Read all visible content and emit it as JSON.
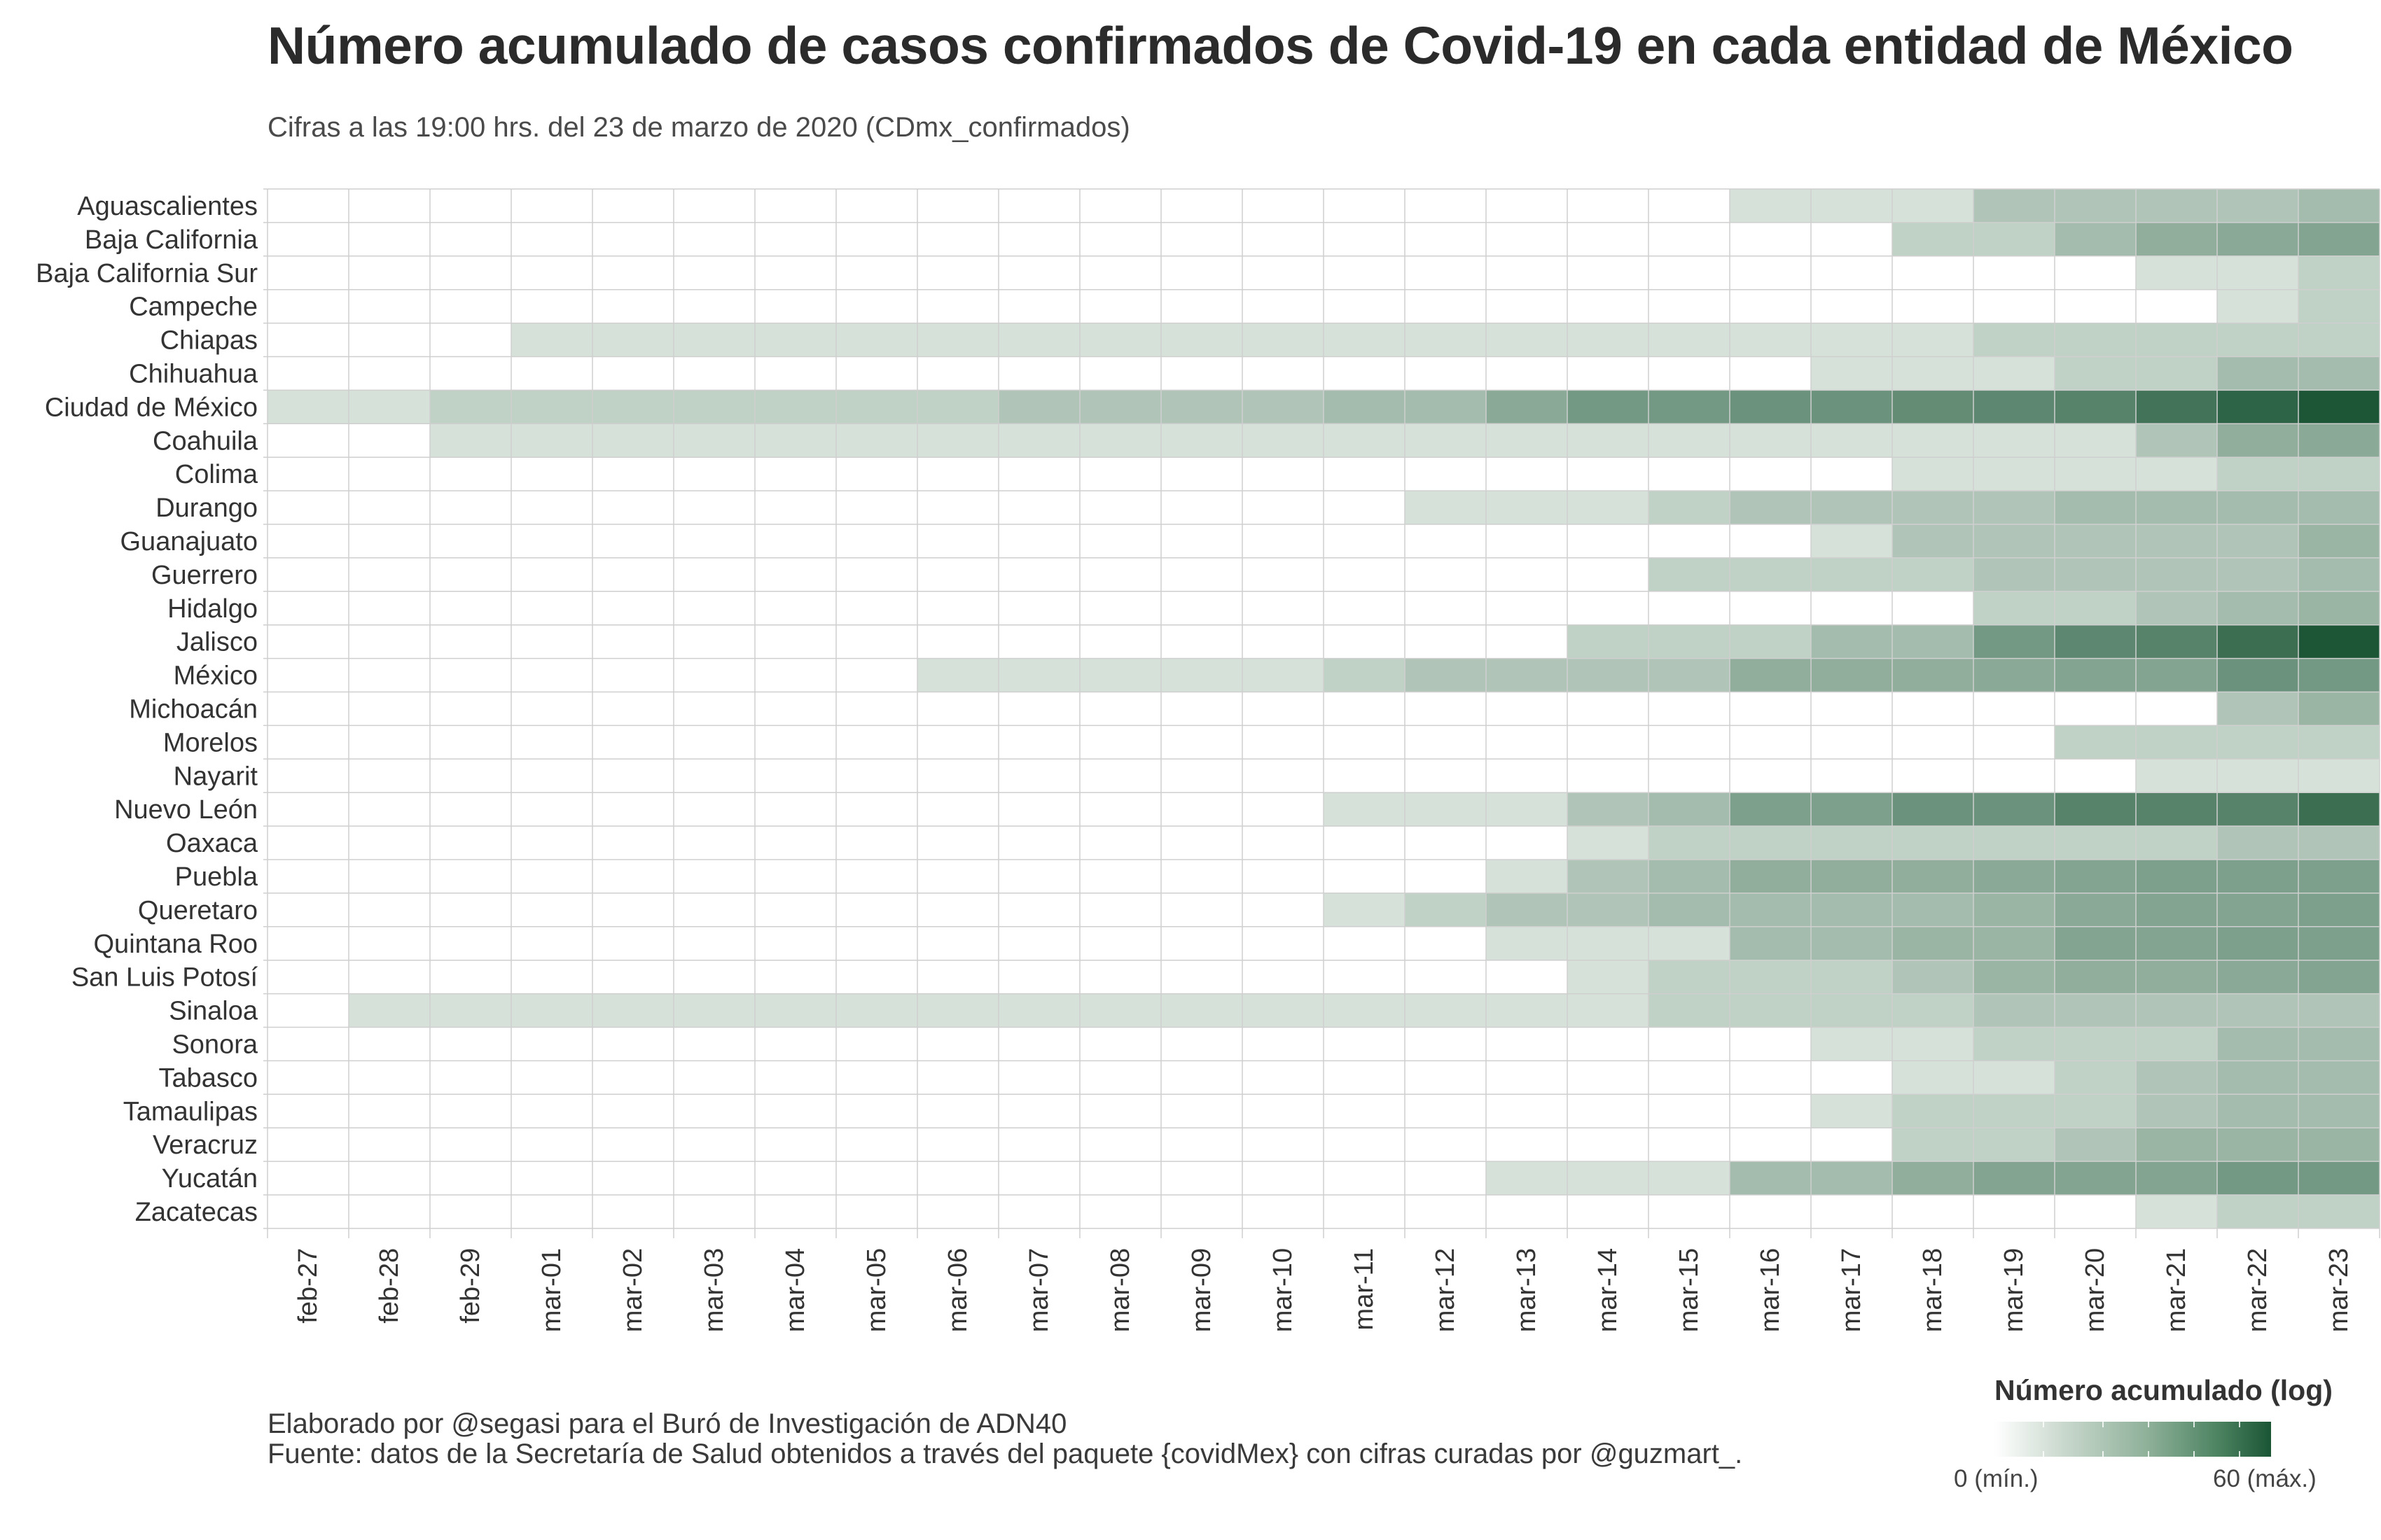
{
  "title": "Número acumulado de casos confirmados de Covid-19 en cada entidad de México",
  "subtitle": "Cifras a las 19:00 hrs. del 23 de marzo de 2020 (CDmx_confirmados)",
  "caption_line1": "Elaborado por @segasi  para el Buró de Investigación de ADN40",
  "caption_line2": "Fuente: datos de la Secretaría de Salud obtenidos a través del paquete {covidMex} con cifras curadas por @guzmart_.",
  "legend": {
    "title": "Número acumulado (log)",
    "min_label": "0 (mín.)",
    "max_label": "60 (máx.)"
  },
  "colors": {
    "low": "#d6e2d9",
    "high": "#1a5535",
    "grid": "#cfcfcf",
    "empty": "#ffffff"
  },
  "chart_data": {
    "type": "heatmap",
    "scale": "log",
    "value_range": [
      0,
      60
    ],
    "x": [
      "feb-27",
      "feb-28",
      "feb-29",
      "mar-01",
      "mar-02",
      "mar-03",
      "mar-04",
      "mar-05",
      "mar-06",
      "mar-07",
      "mar-08",
      "mar-09",
      "mar-10",
      "mar-11",
      "mar-12",
      "mar-13",
      "mar-14",
      "mar-15",
      "mar-16",
      "mar-17",
      "mar-18",
      "mar-19",
      "mar-20",
      "mar-21",
      "mar-22",
      "mar-23"
    ],
    "y": [
      "Aguascalientes",
      "Baja California",
      "Baja California Sur",
      "Campeche",
      "Chiapas",
      "Chihuahua",
      "Ciudad de México",
      "Coahuila",
      "Colima",
      "Durango",
      "Guanajuato",
      "Guerrero",
      "Hidalgo",
      "Jalisco",
      "México",
      "Michoacán",
      "Morelos",
      "Nayarit",
      "Nuevo León",
      "Oaxaca",
      "Puebla",
      "Queretaro",
      "Quintana Roo",
      "San Luis Potosí",
      "Sinaloa",
      "Sonora",
      "Tabasco",
      "Tamaulipas",
      "Veracruz",
      "Yucatán",
      "Zacatecas"
    ],
    "rows": [
      [
        0,
        0,
        0,
        0,
        0,
        0,
        0,
        0,
        0,
        0,
        0,
        0,
        0,
        0,
        0,
        0,
        0,
        0,
        1,
        1,
        1,
        3,
        3,
        3,
        3,
        4
      ],
      [
        0,
        0,
        0,
        0,
        0,
        0,
        0,
        0,
        0,
        0,
        0,
        0,
        0,
        0,
        0,
        0,
        0,
        0,
        0,
        0,
        2,
        2,
        4,
        6,
        7,
        8
      ],
      [
        0,
        0,
        0,
        0,
        0,
        0,
        0,
        0,
        0,
        0,
        0,
        0,
        0,
        0,
        0,
        0,
        0,
        0,
        0,
        0,
        0,
        0,
        0,
        1,
        1,
        2
      ],
      [
        0,
        0,
        0,
        0,
        0,
        0,
        0,
        0,
        0,
        0,
        0,
        0,
        0,
        0,
        0,
        0,
        0,
        0,
        0,
        0,
        0,
        0,
        0,
        0,
        1,
        2
      ],
      [
        0,
        0,
        0,
        1,
        1,
        1,
        1,
        1,
        1,
        1,
        1,
        1,
        1,
        1,
        1,
        1,
        1,
        1,
        1,
        1,
        1,
        2,
        2,
        2,
        2,
        2
      ],
      [
        0,
        0,
        0,
        0,
        0,
        0,
        0,
        0,
        0,
        0,
        0,
        0,
        0,
        0,
        0,
        0,
        0,
        0,
        0,
        1,
        1,
        1,
        2,
        2,
        4,
        4
      ],
      [
        1,
        1,
        2,
        2,
        2,
        2,
        2,
        2,
        2,
        3,
        3,
        3,
        3,
        4,
        4,
        7,
        11,
        11,
        13,
        13,
        15,
        17,
        19,
        28,
        42,
        58
      ],
      [
        0,
        0,
        1,
        1,
        1,
        1,
        1,
        1,
        1,
        1,
        1,
        1,
        1,
        1,
        1,
        1,
        1,
        1,
        1,
        1,
        1,
        1,
        1,
        3,
        6,
        7
      ],
      [
        0,
        0,
        0,
        0,
        0,
        0,
        0,
        0,
        0,
        0,
        0,
        0,
        0,
        0,
        0,
        0,
        0,
        0,
        0,
        0,
        1,
        1,
        1,
        1,
        2,
        2
      ],
      [
        0,
        0,
        0,
        0,
        0,
        0,
        0,
        0,
        0,
        0,
        0,
        0,
        0,
        0,
        1,
        1,
        1,
        2,
        3,
        3,
        3,
        3,
        4,
        4,
        4,
        4
      ],
      [
        0,
        0,
        0,
        0,
        0,
        0,
        0,
        0,
        0,
        0,
        0,
        0,
        0,
        0,
        0,
        0,
        0,
        0,
        0,
        1,
        3,
        3,
        3,
        3,
        3,
        5
      ],
      [
        0,
        0,
        0,
        0,
        0,
        0,
        0,
        0,
        0,
        0,
        0,
        0,
        0,
        0,
        0,
        0,
        0,
        2,
        2,
        2,
        2,
        3,
        3,
        3,
        3,
        4
      ],
      [
        0,
        0,
        0,
        0,
        0,
        0,
        0,
        0,
        0,
        0,
        0,
        0,
        0,
        0,
        0,
        0,
        0,
        0,
        0,
        0,
        0,
        2,
        2,
        3,
        4,
        5
      ],
      [
        0,
        0,
        0,
        0,
        0,
        0,
        0,
        0,
        0,
        0,
        0,
        0,
        0,
        0,
        0,
        0,
        2,
        2,
        2,
        4,
        4,
        11,
        17,
        19,
        32,
        58
      ],
      [
        0,
        0,
        0,
        0,
        0,
        0,
        0,
        0,
        1,
        1,
        1,
        1,
        1,
        2,
        3,
        3,
        3,
        3,
        6,
        6,
        6,
        7,
        8,
        8,
        13,
        11
      ],
      [
        0,
        0,
        0,
        0,
        0,
        0,
        0,
        0,
        0,
        0,
        0,
        0,
        0,
        0,
        0,
        0,
        0,
        0,
        0,
        0,
        0,
        0,
        0,
        0,
        3,
        5
      ],
      [
        0,
        0,
        0,
        0,
        0,
        0,
        0,
        0,
        0,
        0,
        0,
        0,
        0,
        0,
        0,
        0,
        0,
        0,
        0,
        0,
        0,
        0,
        2,
        2,
        2,
        2
      ],
      [
        0,
        0,
        0,
        0,
        0,
        0,
        0,
        0,
        0,
        0,
        0,
        0,
        0,
        0,
        0,
        0,
        0,
        0,
        0,
        0,
        0,
        0,
        0,
        1,
        1,
        1
      ],
      [
        0,
        0,
        0,
        0,
        0,
        0,
        0,
        0,
        0,
        0,
        0,
        0,
        0,
        1,
        1,
        1,
        3,
        4,
        9,
        9,
        13,
        13,
        19,
        19,
        19,
        32
      ],
      [
        0,
        0,
        0,
        0,
        0,
        0,
        0,
        0,
        0,
        0,
        0,
        0,
        0,
        0,
        0,
        0,
        1,
        2,
        2,
        2,
        2,
        2,
        2,
        2,
        3,
        3
      ],
      [
        0,
        0,
        0,
        0,
        0,
        0,
        0,
        0,
        0,
        0,
        0,
        0,
        0,
        0,
        0,
        1,
        3,
        4,
        6,
        6,
        6,
        7,
        8,
        9,
        9,
        9
      ],
      [
        0,
        0,
        0,
        0,
        0,
        0,
        0,
        0,
        0,
        0,
        0,
        0,
        0,
        1,
        2,
        3,
        3,
        4,
        4,
        4,
        4,
        5,
        7,
        8,
        8,
        9
      ],
      [
        0,
        0,
        0,
        0,
        0,
        0,
        0,
        0,
        0,
        0,
        0,
        0,
        0,
        0,
        0,
        1,
        1,
        1,
        4,
        4,
        5,
        5,
        8,
        8,
        9,
        9
      ],
      [
        0,
        0,
        0,
        0,
        0,
        0,
        0,
        0,
        0,
        0,
        0,
        0,
        0,
        0,
        0,
        0,
        1,
        2,
        2,
        2,
        3,
        5,
        6,
        6,
        7,
        8
      ],
      [
        0,
        1,
        1,
        1,
        1,
        1,
        1,
        1,
        1,
        1,
        1,
        1,
        1,
        1,
        1,
        1,
        1,
        2,
        2,
        2,
        2,
        3,
        3,
        3,
        3,
        3
      ],
      [
        0,
        0,
        0,
        0,
        0,
        0,
        0,
        0,
        0,
        0,
        0,
        0,
        0,
        0,
        0,
        0,
        0,
        0,
        0,
        1,
        1,
        2,
        2,
        2,
        4,
        4
      ],
      [
        0,
        0,
        0,
        0,
        0,
        0,
        0,
        0,
        0,
        0,
        0,
        0,
        0,
        0,
        0,
        0,
        0,
        0,
        0,
        0,
        1,
        1,
        2,
        3,
        4,
        4
      ],
      [
        0,
        0,
        0,
        0,
        0,
        0,
        0,
        0,
        0,
        0,
        0,
        0,
        0,
        0,
        0,
        0,
        0,
        0,
        0,
        1,
        2,
        2,
        2,
        3,
        4,
        4
      ],
      [
        0,
        0,
        0,
        0,
        0,
        0,
        0,
        0,
        0,
        0,
        0,
        0,
        0,
        0,
        0,
        0,
        0,
        0,
        0,
        0,
        2,
        2,
        3,
        5,
        5,
        5
      ],
      [
        0,
        0,
        0,
        0,
        0,
        0,
        0,
        0,
        0,
        0,
        0,
        0,
        0,
        0,
        0,
        1,
        1,
        1,
        4,
        4,
        6,
        8,
        8,
        8,
        11,
        11
      ],
      [
        0,
        0,
        0,
        0,
        0,
        0,
        0,
        0,
        0,
        0,
        0,
        0,
        0,
        0,
        0,
        0,
        0,
        0,
        0,
        0,
        0,
        0,
        0,
        1,
        2,
        2
      ]
    ]
  }
}
